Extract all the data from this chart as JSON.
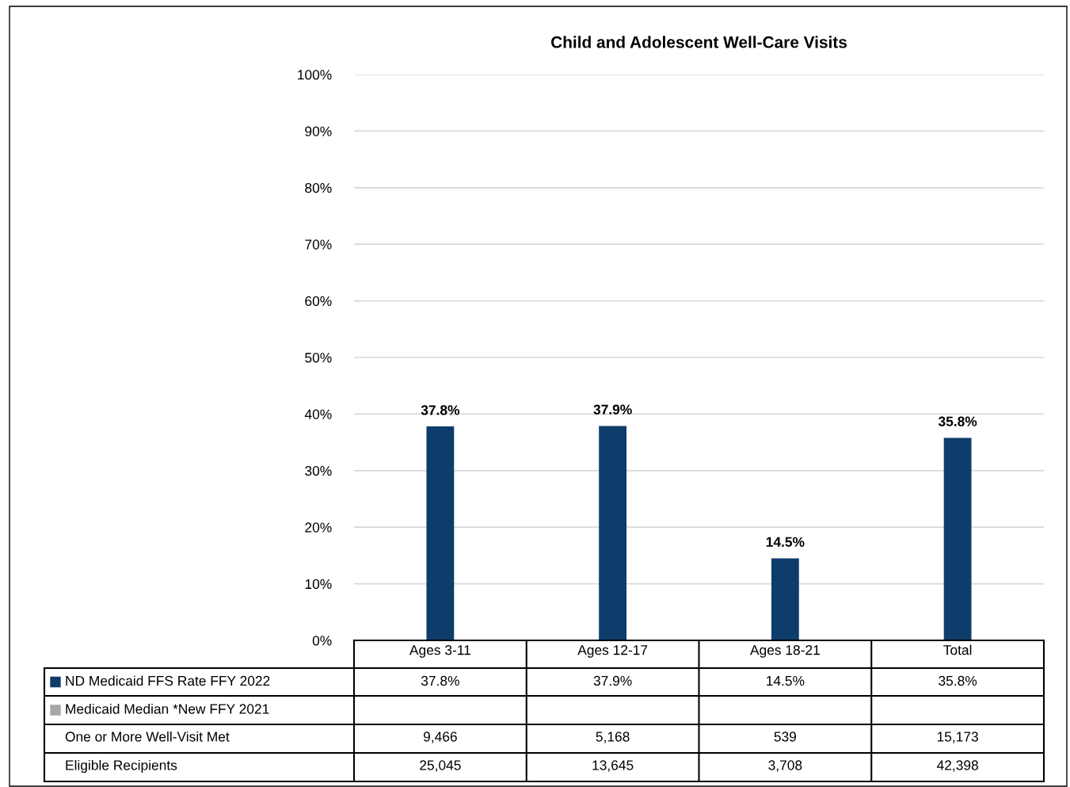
{
  "chart_data": {
    "type": "bar",
    "title": "Child and Adolescent Well-Care Visits",
    "categories": [
      "Ages 3-11",
      "Ages 12-17",
      "Ages 18-21",
      "Total"
    ],
    "series": [
      {
        "name": "ND Medicaid FFS Rate FFY 2022",
        "color": "#0e3d6b",
        "values": [
          37.8,
          37.9,
          14.5,
          35.8
        ],
        "value_labels": [
          "37.8%",
          "37.9%",
          "14.5%",
          "35.8%"
        ]
      },
      {
        "name": "Medicaid Median *New FFY 2021",
        "color": "#a6a6a6",
        "values": [
          null,
          null,
          null,
          null
        ],
        "value_labels": [
          null,
          null,
          null,
          null
        ]
      }
    ],
    "ylim": [
      0,
      100
    ],
    "yticks": [
      {
        "value": 0,
        "label": "0%"
      },
      {
        "value": 10,
        "label": "10%"
      },
      {
        "value": 20,
        "label": "20%"
      },
      {
        "value": 30,
        "label": "30%"
      },
      {
        "value": 40,
        "label": "40%"
      },
      {
        "value": 50,
        "label": "50%"
      },
      {
        "value": 60,
        "label": "60%"
      },
      {
        "value": 70,
        "label": "70%"
      },
      {
        "value": 80,
        "label": "80%"
      },
      {
        "value": 90,
        "label": "90%"
      },
      {
        "value": 100,
        "label": "100%"
      }
    ],
    "grid": "y",
    "legend": "bottom",
    "annotations": [
      "One or More Well-Visit Met",
      "9,466",
      "5,168",
      "539",
      "15,173",
      "Eligible Recipients",
      "25,045",
      "13,645",
      "3,708",
      "42,398"
    ]
  }
}
